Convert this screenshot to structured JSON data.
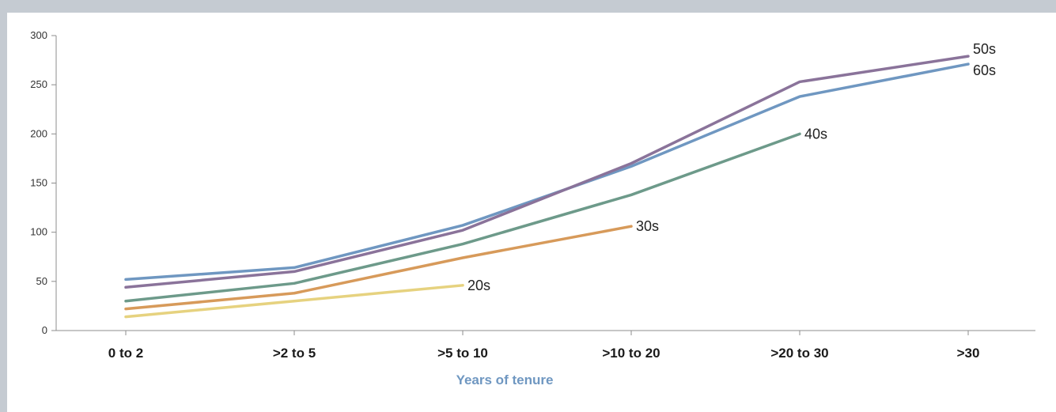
{
  "chart_data": {
    "type": "line",
    "title": "",
    "xlabel": "Years of tenure",
    "ylabel": "",
    "categories": [
      "0 to 2",
      ">2 to 5",
      ">5 to 10",
      ">10 to 20",
      ">20 to 30",
      ">30"
    ],
    "y_ticks": [
      "0",
      "50",
      "100",
      "150",
      "200",
      "250",
      "300"
    ],
    "ylim": [
      0,
      300
    ],
    "grid": false,
    "series": [
      {
        "name": "60s",
        "color": "#6f97c1",
        "values": [
          52,
          64,
          107,
          167,
          238,
          271
        ]
      },
      {
        "name": "50s",
        "color": "#8a739a",
        "values": [
          44,
          60,
          102,
          170,
          253,
          279
        ]
      },
      {
        "name": "40s",
        "color": "#6d9a8a",
        "values": [
          30,
          48,
          88,
          138,
          200,
          null
        ]
      },
      {
        "name": "30s",
        "color": "#d79a5a",
        "values": [
          22,
          38,
          74,
          106,
          null,
          null
        ]
      },
      {
        "name": "20s",
        "color": "#e6d27f",
        "values": [
          14,
          30,
          46,
          null,
          null,
          null
        ]
      }
    ],
    "colors": {
      "axis": "#8c8c8c",
      "xlabel": "#6f97c1"
    }
  }
}
